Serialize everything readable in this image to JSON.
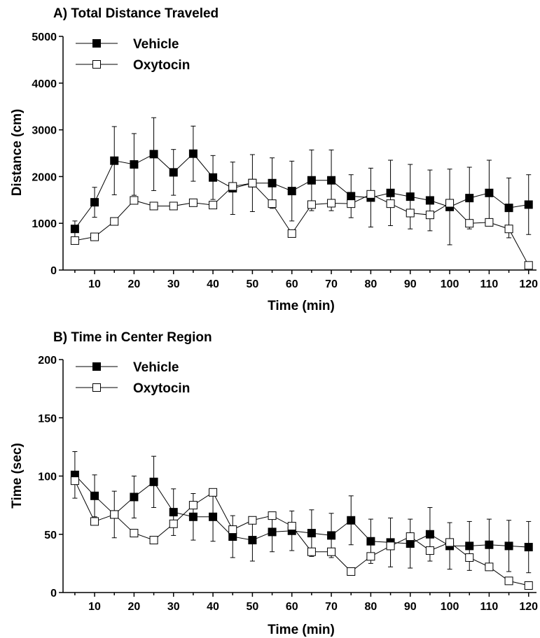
{
  "chart_data": [
    {
      "type": "line",
      "title": "A)  Total Distance Traveled",
      "xlabel": "Time (min)",
      "ylabel": "Distance (cm)",
      "xlim": [
        2,
        122
      ],
      "ylim": [
        0,
        5000
      ],
      "xticks": [
        10,
        20,
        30,
        40,
        50,
        60,
        70,
        80,
        90,
        100,
        110,
        120
      ],
      "yticks": [
        0,
        1000,
        2000,
        3000,
        4000,
        5000
      ],
      "x": [
        5,
        10,
        15,
        20,
        25,
        30,
        35,
        40,
        45,
        50,
        55,
        60,
        65,
        70,
        75,
        80,
        85,
        90,
        95,
        100,
        105,
        110,
        115,
        120
      ],
      "legend_position": "top-left",
      "grid": false,
      "series": [
        {
          "name": "Vehicle",
          "marker": "filled-square",
          "color": "#000000",
          "values": [
            880,
            1450,
            2340,
            2260,
            2480,
            2090,
            2490,
            1980,
            1750,
            1860,
            1860,
            1690,
            1920,
            1920,
            1580,
            1550,
            1650,
            1570,
            1490,
            1350,
            1540,
            1650,
            1330,
            1400
          ],
          "errors": [
            170,
            320,
            730,
            660,
            780,
            490,
            590,
            470,
            560,
            610,
            540,
            640,
            650,
            650,
            460,
            630,
            700,
            690,
            650,
            810,
            660,
            700,
            640,
            640
          ]
        },
        {
          "name": "Oxytocin",
          "marker": "open-square",
          "color": "#000000",
          "values": [
            630,
            710,
            1040,
            1490,
            1370,
            1370,
            1440,
            1390,
            1790,
            1860,
            1420,
            780,
            1400,
            1430,
            1420,
            1620,
            1420,
            1220,
            1180,
            1430,
            1000,
            1020,
            880,
            100
          ]
        }
      ]
    },
    {
      "type": "line",
      "title": "B)  Time in Center Region",
      "xlabel": "Time (min)",
      "ylabel": "Time (sec)",
      "xlim": [
        2,
        122
      ],
      "ylim": [
        0,
        200
      ],
      "xticks": [
        10,
        20,
        30,
        40,
        50,
        60,
        70,
        80,
        90,
        100,
        110,
        120
      ],
      "yticks": [
        0,
        50,
        100,
        150,
        200
      ],
      "x": [
        5,
        10,
        15,
        20,
        25,
        30,
        35,
        40,
        45,
        50,
        55,
        60,
        65,
        70,
        75,
        80,
        85,
        90,
        95,
        100,
        105,
        110,
        115,
        120
      ],
      "legend_position": "top-left",
      "grid": false,
      "series": [
        {
          "name": "Vehicle",
          "marker": "filled-square",
          "color": "#000000",
          "values": [
            101,
            83,
            67,
            82,
            95,
            69,
            65,
            65,
            48,
            45,
            52,
            53,
            51,
            49,
            62,
            44,
            43,
            42,
            50,
            40,
            40,
            41,
            40,
            39
          ],
          "errors": [
            20,
            18,
            20,
            18,
            22,
            20,
            20,
            21,
            18,
            18,
            17,
            17,
            20,
            19,
            21,
            19,
            21,
            21,
            23,
            20,
            21,
            22,
            22,
            22
          ]
        },
        {
          "name": "Oxytocin",
          "marker": "open-square",
          "color": "#000000",
          "values": [
            96,
            61,
            67,
            51,
            45,
            59,
            75,
            86,
            54,
            62,
            66,
            57,
            35,
            35,
            18,
            31,
            40,
            48,
            36,
            43,
            30,
            22,
            10,
            6
          ]
        }
      ]
    }
  ]
}
